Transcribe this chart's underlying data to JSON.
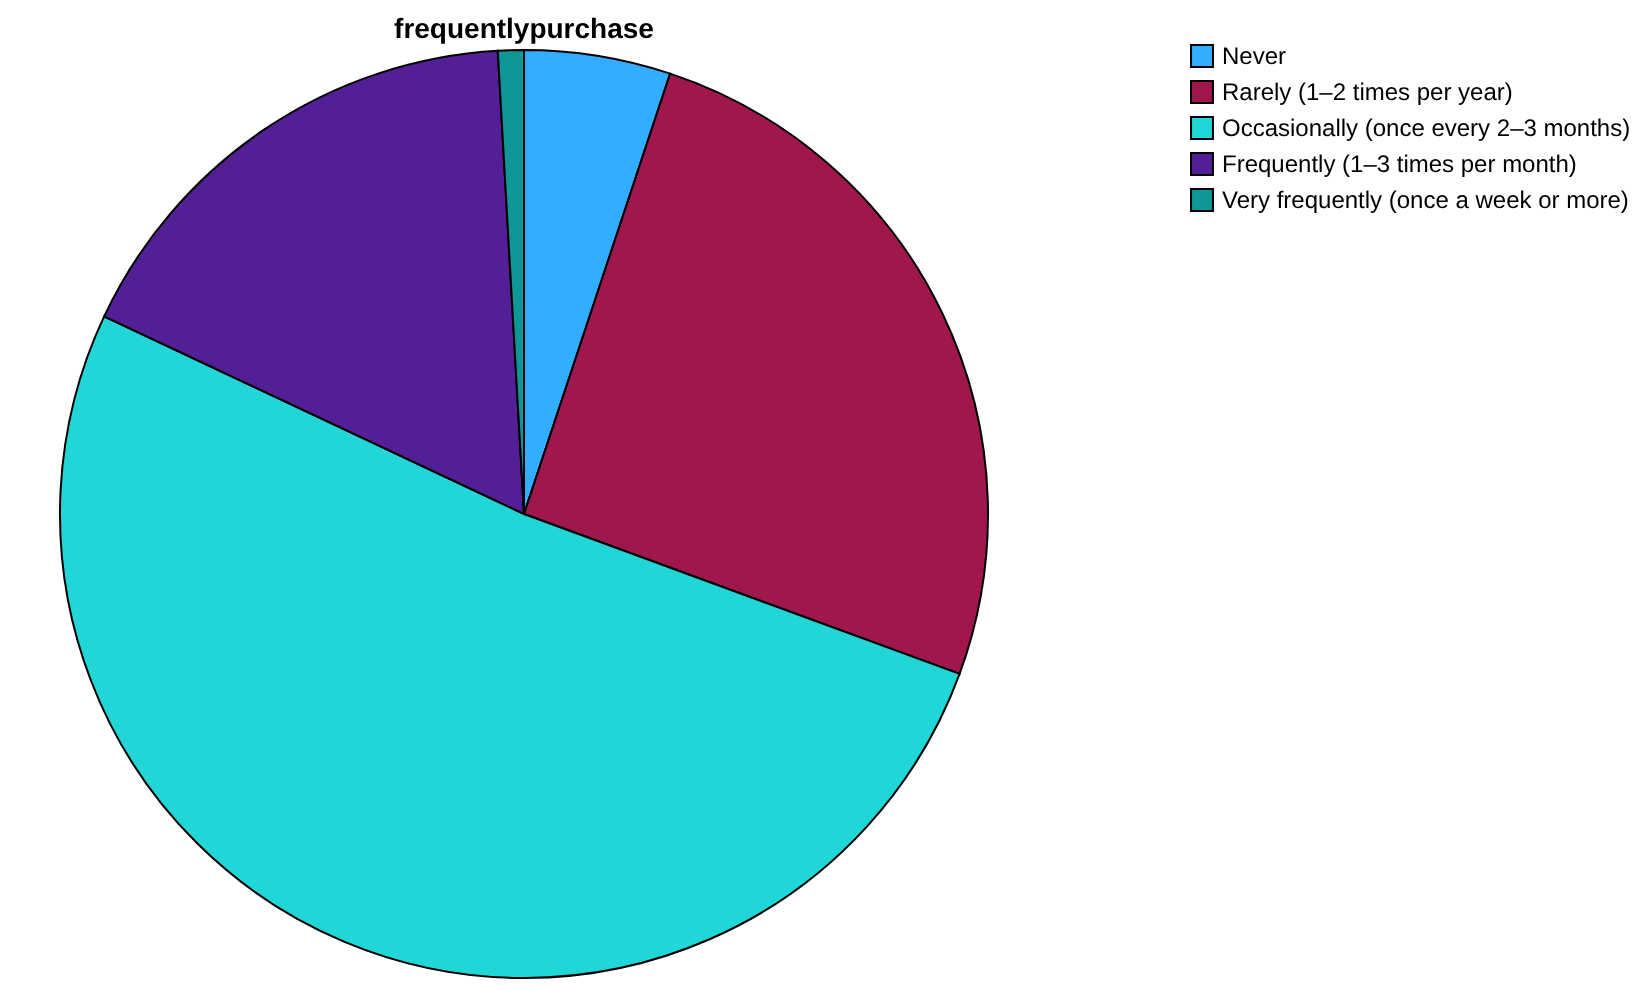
{
  "chart_data": {
    "type": "pie",
    "title": "frequentlypurchase",
    "categories": [
      "Never",
      "Rarely (1–2 times per year)",
      "Occasionally (once every 2–3 months)",
      "Frequently (1–3 times per month)",
      "Very frequently (once a week or more)"
    ],
    "values": [
      5.1,
      25.5,
      51.4,
      17.1,
      0.9
    ],
    "colors": [
      "#33adff",
      "#a0174d",
      "#21d6d6",
      "#521f96",
      "#0f9696"
    ],
    "legend": "top right"
  }
}
